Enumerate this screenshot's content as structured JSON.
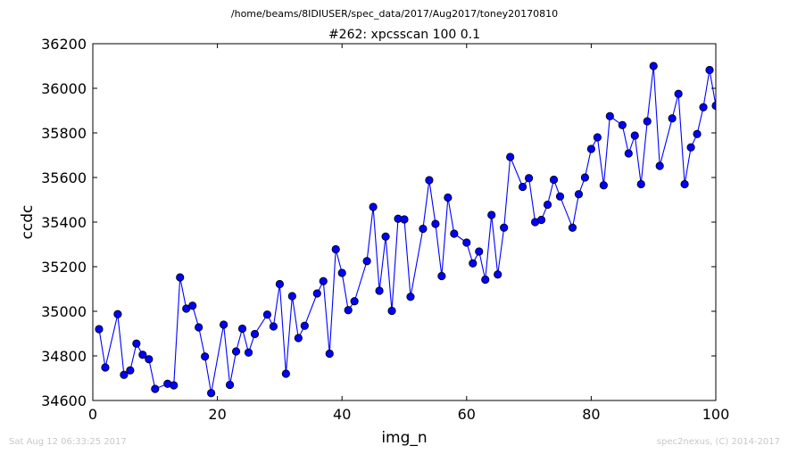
{
  "suptitle": "/home/beams/8IDIUSER/spec_data/2017/Aug2017/toney20170810",
  "footer": {
    "left": "Sat Aug 12 06:33:25 2017",
    "right": "spec2nexus, (C) 2014-2017"
  },
  "colors": {
    "series": "#0000ff"
  },
  "chart_data": {
    "type": "line",
    "title": "#262: xpcsscan 100 0.1",
    "xlabel": "img_n",
    "ylabel": "ccdc",
    "xlim": [
      0,
      100
    ],
    "ylim": [
      34600,
      36200
    ],
    "xticks": [
      0,
      20,
      40,
      60,
      80,
      100
    ],
    "yticks": [
      34600,
      34800,
      35000,
      35200,
      35400,
      35600,
      35800,
      36000,
      36200
    ],
    "marker": "circle",
    "grid": false,
    "series": [
      {
        "x": [
          1,
          2,
          4,
          5,
          6,
          7,
          8,
          9,
          10,
          12,
          13,
          14,
          15,
          16,
          17,
          18,
          19,
          21,
          22,
          23,
          24,
          25,
          26,
          28,
          29,
          30,
          31,
          32,
          33,
          34,
          36,
          37,
          38,
          39,
          40,
          41,
          42,
          44,
          45,
          46,
          47,
          48,
          49,
          50,
          51,
          53,
          54,
          55,
          56,
          57,
          58,
          60,
          61,
          62,
          63,
          64,
          65,
          66,
          67,
          69,
          70,
          71,
          72,
          73,
          74,
          75,
          77,
          78,
          79,
          80,
          81,
          82,
          83,
          85,
          86,
          87,
          88,
          89,
          90,
          91,
          93,
          94,
          95,
          96,
          97,
          98,
          99,
          100
        ],
        "y": [
          34920,
          34748,
          34987,
          34715,
          34735,
          34855,
          34805,
          34785,
          34652,
          34675,
          34668,
          35152,
          35012,
          35025,
          34928,
          34797,
          34633,
          34940,
          34670,
          34820,
          34922,
          34815,
          34898,
          34985,
          34932,
          35122,
          34720,
          35068,
          34880,
          34935,
          35080,
          35135,
          34810,
          35278,
          35172,
          35005,
          35045,
          35225,
          35468,
          35092,
          35335,
          35002,
          35415,
          35412,
          35065,
          35370,
          35588,
          35392,
          35158,
          35510,
          35348,
          35308,
          35215,
          35268,
          35142,
          35432,
          35165,
          35375,
          35692,
          35558,
          35597,
          35400,
          35410,
          35478,
          35590,
          35515,
          35375,
          35525,
          35600,
          35728,
          35780,
          35565,
          35875,
          35835,
          35708,
          35788,
          35570,
          35852,
          36100,
          35652,
          35865,
          35975,
          35570,
          35735,
          35795,
          35915,
          36082,
          35922
        ]
      }
    ]
  }
}
